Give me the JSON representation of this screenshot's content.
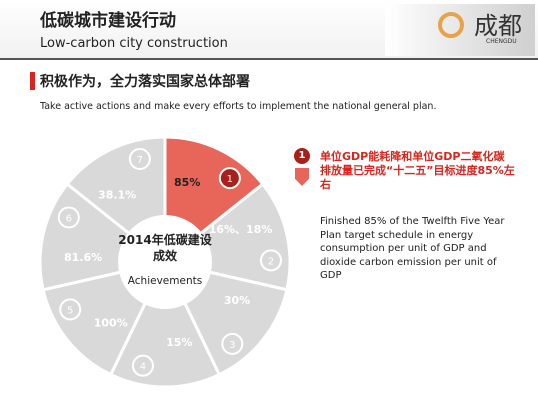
{
  "header": {
    "title": "低碳城市建设行动",
    "subtitle": "Low-carbon city construction",
    "logo": "成都",
    "logo_sub": "CHENGDU"
  },
  "section": {
    "heading": "积极作为，全力落实国家总体部署",
    "text": "Take active actions and make every efforts to implement the national general plan."
  },
  "wheel": {
    "center_title": "2014年低碳建设成效",
    "center_subtitle": "Achievements",
    "segments": [
      {
        "number": "1",
        "value": "85%"
      },
      {
        "number": "2",
        "value": "16%、18%"
      },
      {
        "number": "3",
        "value": "30%"
      },
      {
        "number": "4",
        "value": "15%"
      },
      {
        "number": "5",
        "value": "100%"
      },
      {
        "number": "6",
        "value": "81.6%"
      },
      {
        "number": "7",
        "value": "38.1%"
      }
    ]
  },
  "detail": {
    "number": "1",
    "title": "单位GDP能耗降和单位GDP二氧化碳排放量已完成“十二五”目标进度85%左右",
    "text": "Finished 85% of the Twelfth Five Year Plan target schedule in energy consumption per unit of GDP and dioxide carbon emission per unit of GDP"
  }
}
